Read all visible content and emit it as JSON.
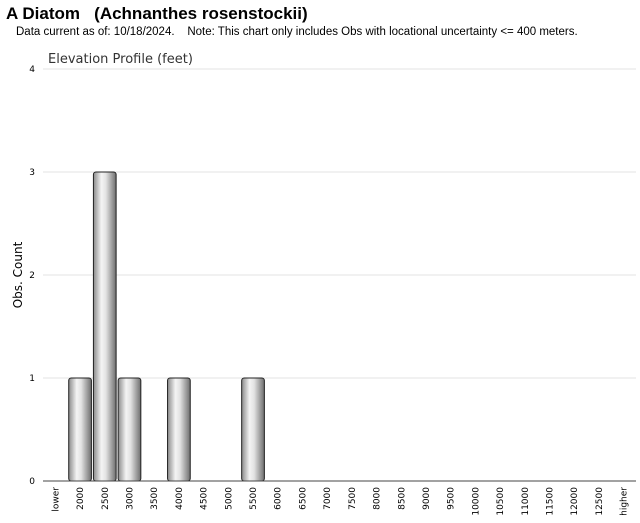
{
  "header": {
    "title": "A Diatom   (Achnanthes rosenstockii)",
    "subtitle": "Data current as of: 10/18/2024.    Note: This chart only includes Obs with locational uncertainty <= 400 meters."
  },
  "chart_data": {
    "type": "bar",
    "title": "Elevation Profile (feet)",
    "xlabel": "",
    "ylabel": "Obs. Count",
    "ylim": [
      0,
      4
    ],
    "yticks": [
      0,
      1,
      2,
      3,
      4
    ],
    "grid": true,
    "categories": [
      "lower",
      "2000",
      "2500",
      "3000",
      "3500",
      "4000",
      "4500",
      "5000",
      "5500",
      "6000",
      "6500",
      "7000",
      "7500",
      "8000",
      "8500",
      "9000",
      "9500",
      "10000",
      "10500",
      "11000",
      "11500",
      "12000",
      "12500",
      "higher"
    ],
    "values": [
      0,
      1,
      3,
      1,
      0,
      1,
      0,
      0,
      1,
      0,
      0,
      0,
      0,
      0,
      0,
      0,
      0,
      0,
      0,
      0,
      0,
      0,
      0,
      0
    ]
  }
}
